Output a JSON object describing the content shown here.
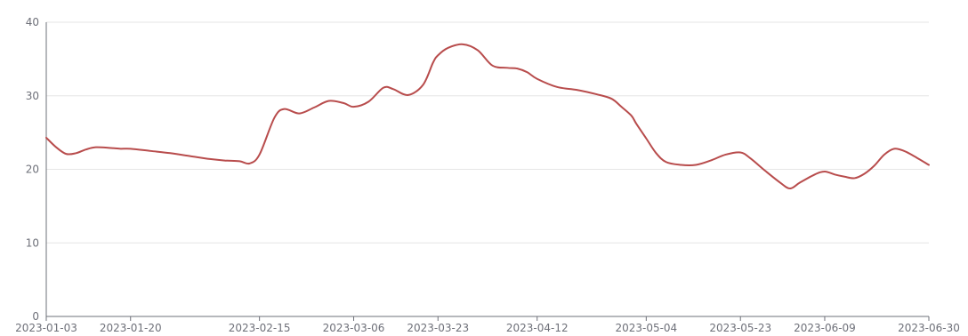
{
  "chart_data": {
    "type": "line",
    "title": "",
    "xlabel": "",
    "ylabel": "",
    "ylim": [
      0,
      40
    ],
    "yticks": [
      0,
      10,
      20,
      30,
      40
    ],
    "grid": true,
    "legend": "none",
    "x_tick_labels": [
      "2023-01-03",
      "2023-01-20",
      "2023-02-15",
      "2023-03-06",
      "2023-03-23",
      "2023-04-12",
      "2023-05-04",
      "2023-05-23",
      "2023-06-09",
      "2023-06-30"
    ],
    "x": [
      "2023-01-03",
      "2023-01-05",
      "2023-01-07",
      "2023-01-09",
      "2023-01-11",
      "2023-01-13",
      "2023-01-16",
      "2023-01-18",
      "2023-01-20",
      "2023-01-24",
      "2023-01-28",
      "2023-02-01",
      "2023-02-05",
      "2023-02-08",
      "2023-02-11",
      "2023-02-13",
      "2023-02-15",
      "2023-02-18",
      "2023-02-20",
      "2023-02-23",
      "2023-02-26",
      "2023-03-01",
      "2023-03-04",
      "2023-03-06",
      "2023-03-09",
      "2023-03-12",
      "2023-03-14",
      "2023-03-17",
      "2023-03-20",
      "2023-03-22",
      "2023-03-23",
      "2023-03-25",
      "2023-03-28",
      "2023-03-31",
      "2023-04-03",
      "2023-04-06",
      "2023-04-08",
      "2023-04-10",
      "2023-04-12",
      "2023-04-16",
      "2023-04-20",
      "2023-04-24",
      "2023-04-27",
      "2023-04-29",
      "2023-05-01",
      "2023-05-02",
      "2023-05-04",
      "2023-05-06",
      "2023-05-08",
      "2023-05-11",
      "2023-05-14",
      "2023-05-17",
      "2023-05-20",
      "2023-05-23",
      "2023-05-25",
      "2023-05-28",
      "2023-05-31",
      "2023-06-02",
      "2023-06-04",
      "2023-06-07",
      "2023-06-09",
      "2023-06-11",
      "2023-06-13",
      "2023-06-15",
      "2023-06-17",
      "2023-06-19",
      "2023-06-21",
      "2023-06-23",
      "2023-06-25",
      "2023-06-27",
      "2023-06-30"
    ],
    "series": [
      {
        "color": "#b84c4c",
        "values": [
          24.3,
          23.0,
          22.1,
          22.2,
          22.7,
          23.0,
          22.9,
          22.8,
          22.8,
          22.5,
          22.2,
          21.8,
          21.4,
          21.2,
          21.1,
          20.8,
          22.0,
          27.0,
          28.2,
          27.6,
          28.4,
          29.3,
          29.0,
          28.5,
          29.2,
          31.1,
          30.9,
          30.1,
          31.5,
          34.5,
          35.5,
          36.5,
          37.0,
          36.2,
          34.1,
          33.8,
          33.7,
          33.2,
          32.3,
          31.2,
          30.8,
          30.2,
          29.6,
          28.5,
          27.3,
          26.2,
          24.2,
          22.2,
          21.0,
          20.6,
          20.6,
          21.2,
          22.0,
          22.3,
          21.5,
          19.8,
          18.2,
          17.4,
          18.2,
          19.3,
          19.7,
          19.3,
          19.0,
          18.8,
          19.4,
          20.5,
          22.0,
          22.8,
          22.5,
          21.8,
          20.6
        ]
      }
    ]
  }
}
